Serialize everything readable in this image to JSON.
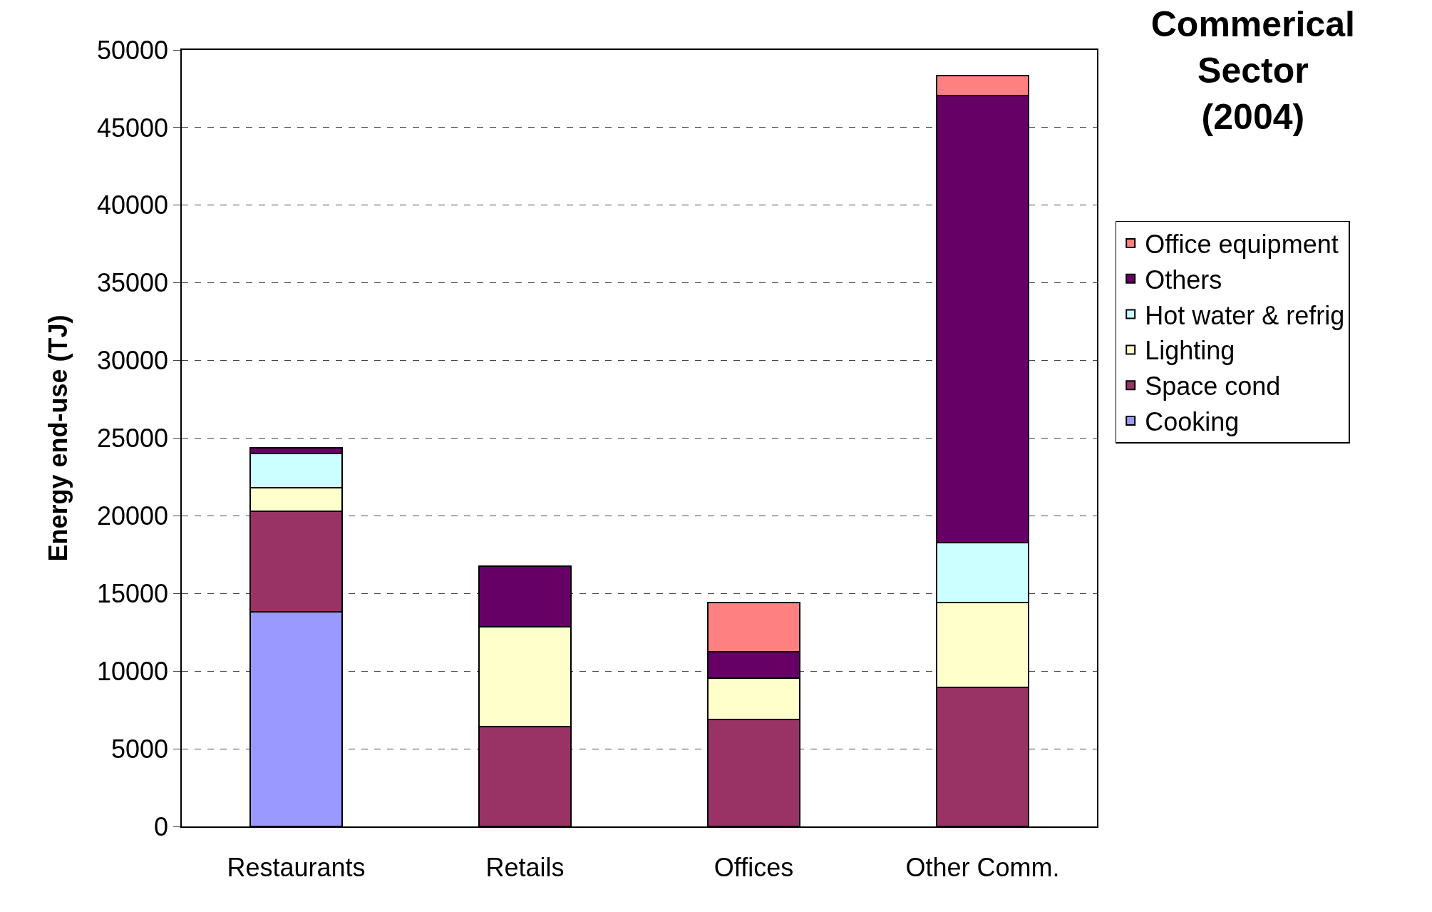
{
  "chart_data": {
    "type": "bar",
    "stacked": true,
    "title": "Commerical Sector (2004)",
    "ylabel": "Energy end-use (TJ)",
    "categories": [
      "Restaurants",
      "Retails",
      "Offices",
      "Other Comm."
    ],
    "series": [
      {
        "name": "Cooking",
        "color": "#9999ff",
        "values": [
          13800,
          null,
          null,
          null
        ]
      },
      {
        "name": "Space cond",
        "color": "#993366",
        "values": [
          6500,
          6450,
          6900,
          8970
        ]
      },
      {
        "name": "Lighting",
        "color": "#ffffcc",
        "values": [
          1500,
          6400,
          2650,
          5450
        ]
      },
      {
        "name": "Hot water & refrig",
        "color": "#ccffff",
        "values": [
          2200,
          null,
          null,
          3870
        ]
      },
      {
        "name": "Others",
        "color": "#660066",
        "values": [
          400,
          3900,
          1700,
          28780
        ]
      },
      {
        "name": "Office equipment",
        "color": "#ff8080",
        "values": [
          null,
          null,
          3170,
          1290
        ]
      }
    ],
    "ylim": [
      0,
      50000
    ],
    "yticks": [
      0,
      5000,
      10000,
      15000,
      20000,
      25000,
      30000,
      35000,
      40000,
      45000,
      50000
    ],
    "grid": "y",
    "legend": "right"
  }
}
